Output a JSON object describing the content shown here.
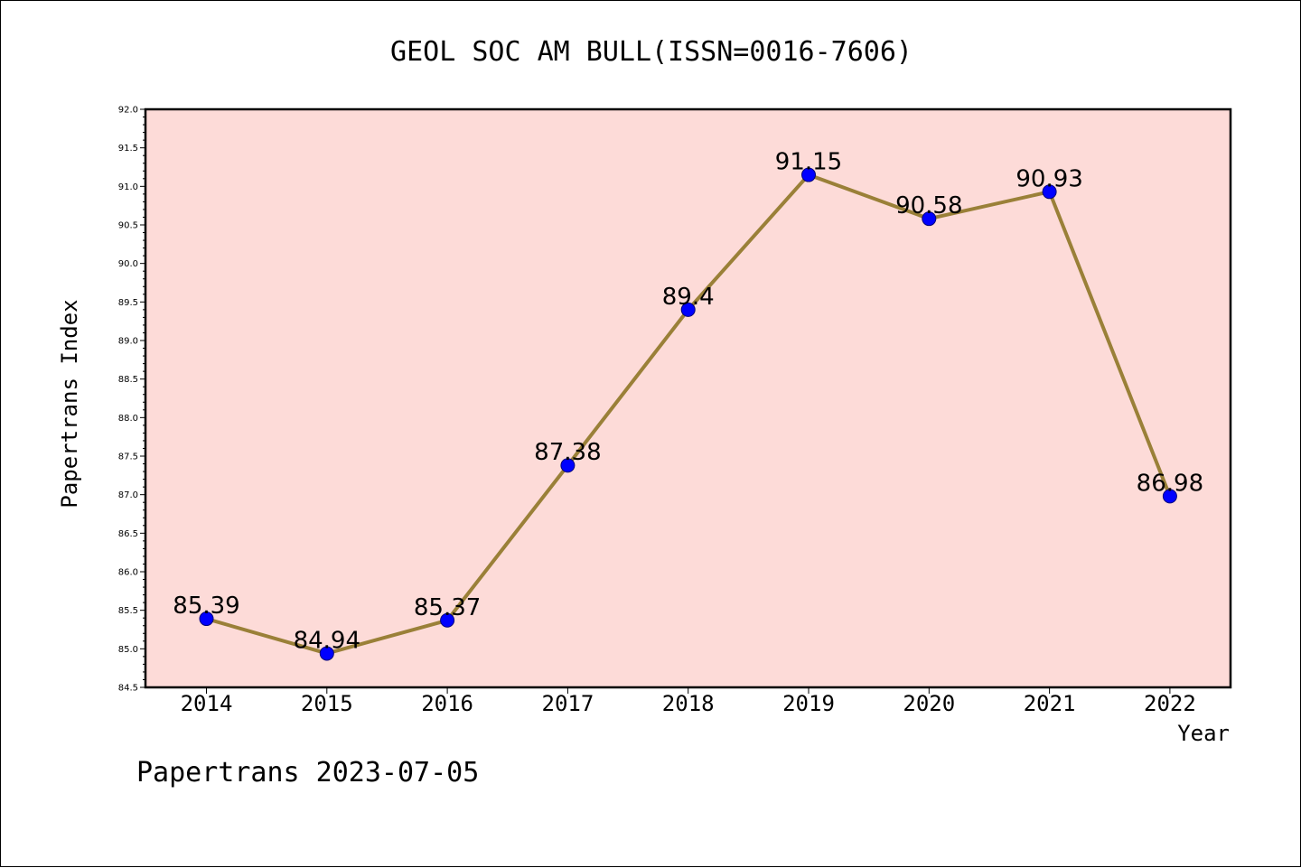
{
  "chart_data": {
    "type": "line",
    "title": "GEOL SOC AM BULL(ISSN=0016-7606)",
    "xlabel": "Year",
    "ylabel": "Papertrans Index",
    "categories": [
      "2014",
      "2015",
      "2016",
      "2017",
      "2018",
      "2019",
      "2020",
      "2021",
      "2022"
    ],
    "values": [
      85.39,
      84.94,
      85.37,
      87.38,
      89.4,
      91.15,
      90.58,
      90.93,
      86.98
    ],
    "data_labels": [
      "85.39",
      "84.94",
      "85.37",
      "87.38",
      "89.4",
      "91.15",
      "90.58",
      "90.93",
      "86.98"
    ],
    "ylim": [
      84.5,
      92.0
    ],
    "yticks": [
      "84.5",
      "85.0",
      "85.5",
      "86.0",
      "86.5",
      "87.0",
      "87.5",
      "88.0",
      "88.5",
      "89.0",
      "89.5",
      "90.0",
      "90.5",
      "91.0",
      "91.5",
      "92.0"
    ],
    "grid": false,
    "colors": {
      "plot_background": "#fddbd8",
      "line": "#9a8038",
      "marker": "#0000ff",
      "marker_edge": "#00007a",
      "axis": "#000000"
    }
  },
  "footer": "Papertrans 2023-07-05"
}
